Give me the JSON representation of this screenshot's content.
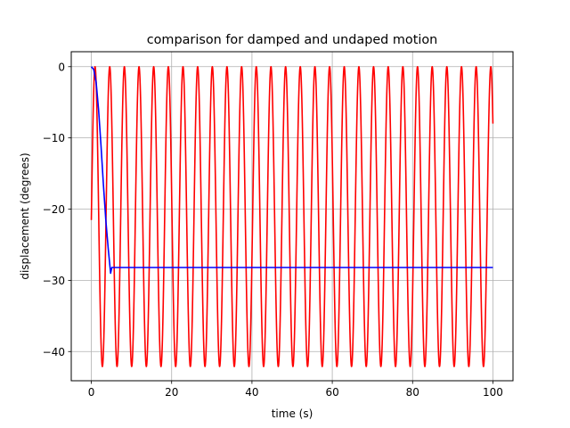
{
  "chart_data": {
    "type": "line",
    "title": "comparison for damped and undaped motion",
    "xlabel": "time (s)",
    "ylabel": "displacement (degrees)",
    "xlim": [
      -5,
      105
    ],
    "ylim": [
      -44.1,
      2.1
    ],
    "grid": true,
    "x_ticks": [
      0,
      20,
      40,
      60,
      80,
      100
    ],
    "x_tick_labels": [
      "0",
      "20",
      "40",
      "60",
      "80",
      "100"
    ],
    "y_ticks": [
      0,
      -10,
      -20,
      -30,
      -40
    ],
    "y_tick_labels": [
      "0",
      "−10",
      "−20",
      "−30",
      "−40"
    ],
    "series": [
      {
        "color": "#ff0000",
        "model": "periodic",
        "amplitude": 42.1,
        "period": 3.65,
        "first_trough": 1.85,
        "x_range": [
          0,
          100
        ],
        "end_value": -8
      },
      {
        "color": "#0000ff",
        "x": [
          0,
          0.6,
          1.2,
          1.8,
          2.4,
          3.0,
          3.6,
          4.2,
          4.8,
          5.1,
          6,
          20,
          40,
          60,
          80,
          100
        ],
        "y": [
          0,
          -0.4,
          -2.2,
          -6.0,
          -11.0,
          -16.5,
          -21.5,
          -25.5,
          -29.0,
          -28.2,
          -28.2,
          -28.2,
          -28.2,
          -28.2,
          -28.2,
          -28.2
        ]
      }
    ]
  }
}
